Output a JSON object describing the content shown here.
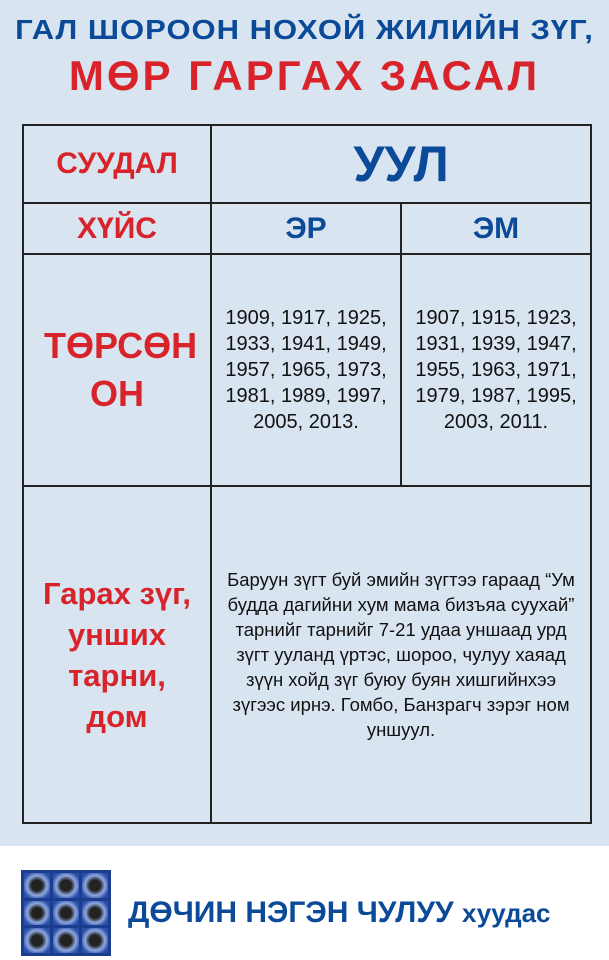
{
  "header": {
    "line1": "ГАЛ ШОРООН НОХОЙ ЖИЛИЙН ЗҮГ,",
    "line2": "МӨР ГАРГАХ ЗАСАЛ"
  },
  "table": {
    "shadow_label": "СУУДАЛ",
    "shadow_value": "УУЛ",
    "gender_label": "ХҮЙС",
    "male": "ЭР",
    "female": "ЭМ",
    "birth_label": "ТӨРСӨН ОН",
    "male_years": "1909, 1917, 1925, 1933, 1941, 1949, 1957, 1965, 1973, 1981, 1989, 1997, 2005, 2013.",
    "female_years": "1907, 1915, 1923, 1931, 1939, 1947, 1955, 1963, 1971, 1979, 1987, 1995, 2003, 2011.",
    "exit_label": "Гарах зүг, унших тарни, дом",
    "exit_text": "Баруун зүгт буй эмийн зүгтээ гараад “Ум будда дагийни хум мама бизъяа суухай” тарнийг тарнийг 7-21 удаа уншаад урд зүгт ууланд үртэс, шороо, чулуу хаяад зүүн хойд зүг буюу буян хишгийнхээ зүгээс ирнэ. Гомбо, Банзрагч зэрэг ном уншуул."
  },
  "footer": {
    "brand": "ДӨЧИН НЭГЭН ЧУЛУУ",
    "suffix": "хуудас"
  },
  "colors": {
    "blue": "#0b4a98",
    "red": "#d8232a",
    "background": "#d9e4f1"
  }
}
